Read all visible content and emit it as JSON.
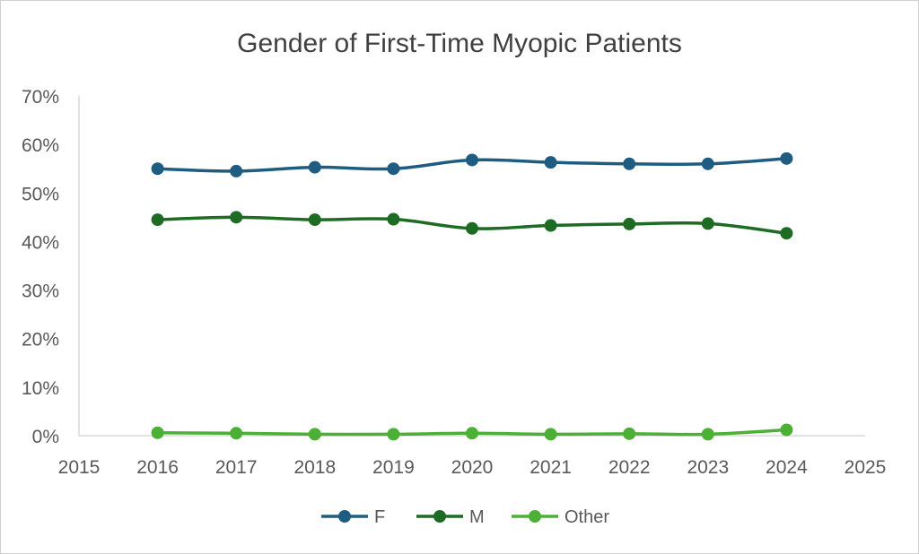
{
  "chart_data": {
    "type": "line",
    "title": "Gender of First-Time Myopic Patients",
    "xlabel": "",
    "ylabel": "",
    "xlim": [
      2015,
      2025
    ],
    "ylim": [
      0,
      0.7
    ],
    "x_ticks": [
      "2015",
      "2016",
      "2017",
      "2018",
      "2019",
      "2020",
      "2021",
      "2022",
      "2023",
      "2024",
      "2025"
    ],
    "y_ticks": [
      "0%",
      "10%",
      "20%",
      "30%",
      "40%",
      "50%",
      "60%",
      "70%"
    ],
    "grid": false,
    "legend_position": "bottom",
    "x": [
      2016,
      2017,
      2018,
      2019,
      2020,
      2021,
      2022,
      2023,
      2024
    ],
    "series": [
      {
        "name": "F",
        "color": "#1f5c82",
        "values": [
          0.55,
          0.545,
          0.553,
          0.55,
          0.568,
          0.563,
          0.56,
          0.56,
          0.571
        ]
      },
      {
        "name": "M",
        "color": "#1e6b24",
        "values": [
          0.445,
          0.45,
          0.445,
          0.446,
          0.427,
          0.433,
          0.436,
          0.437,
          0.417
        ]
      },
      {
        "name": "Other",
        "color": "#4caf36",
        "values": [
          0.006,
          0.005,
          0.003,
          0.003,
          0.005,
          0.003,
          0.004,
          0.003,
          0.012
        ]
      }
    ]
  }
}
